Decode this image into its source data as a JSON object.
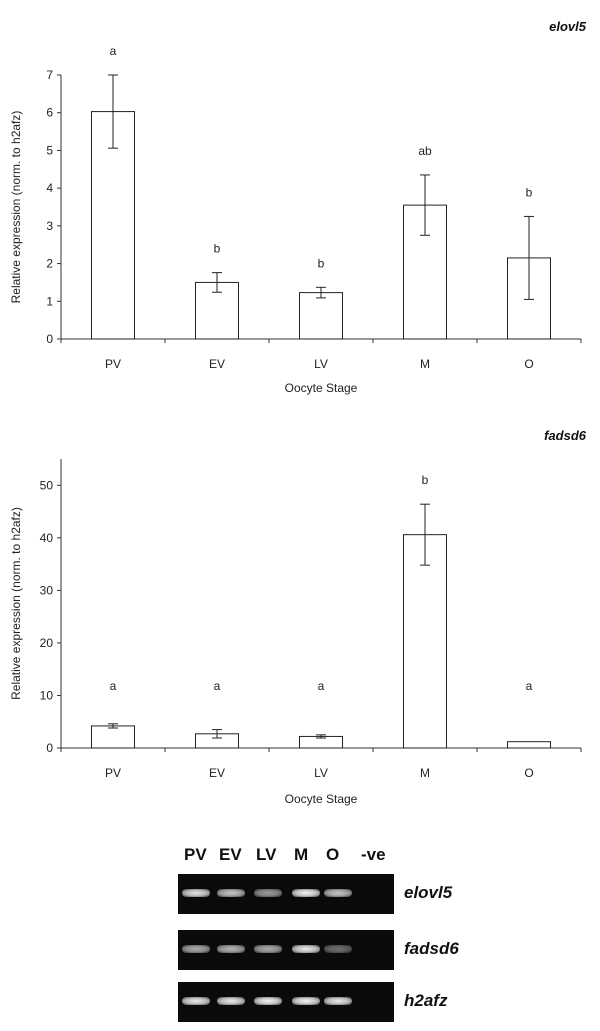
{
  "chart_data": [
    {
      "type": "bar",
      "title": "elovl5",
      "xlabel": "Oocyte Stage",
      "ylabel": "Relative expression (norm. to h2afz)",
      "categories": [
        "PV",
        "EV",
        "LV",
        "M",
        "O"
      ],
      "values": [
        6.03,
        1.5,
        1.23,
        3.55,
        2.15
      ],
      "errors": [
        0.97,
        0.26,
        0.14,
        0.8,
        1.1
      ],
      "significance": [
        "a",
        "b",
        "b",
        "ab",
        "b"
      ],
      "ylim": [
        0,
        7
      ],
      "yticks": [
        "0",
        "1",
        "2",
        "3",
        "4",
        "5",
        "6",
        "7"
      ],
      "grid": false
    },
    {
      "type": "bar",
      "title": "fadsd6",
      "xlabel": "Oocyte Stage",
      "ylabel": "Relative expression (norm. to h2afz)",
      "categories": [
        "PV",
        "EV",
        "LV",
        "M",
        "O"
      ],
      "values": [
        4.2,
        2.7,
        2.2,
        40.6,
        1.2
      ],
      "errors": [
        0.4,
        0.8,
        0.3,
        5.8,
        0
      ],
      "significance": [
        "a",
        "a",
        "a",
        "b",
        "a"
      ],
      "ylim": [
        0,
        55
      ],
      "yticks": [
        "0",
        "10",
        "20",
        "30",
        "40",
        "50"
      ],
      "grid": false
    }
  ],
  "gel": {
    "lanes": [
      "PV",
      "EV",
      "LV",
      "M",
      "O",
      "-ve"
    ],
    "rows": [
      {
        "gene": "elovl5",
        "intensity": [
          0.9,
          0.75,
          0.5,
          1.0,
          0.75,
          0
        ]
      },
      {
        "gene": "fadsd6",
        "intensity": [
          0.6,
          0.65,
          0.6,
          0.95,
          0.25,
          0
        ]
      },
      {
        "gene": "h2afz",
        "intensity": [
          0.95,
          0.95,
          1.0,
          1.0,
          0.95,
          0
        ]
      }
    ]
  }
}
